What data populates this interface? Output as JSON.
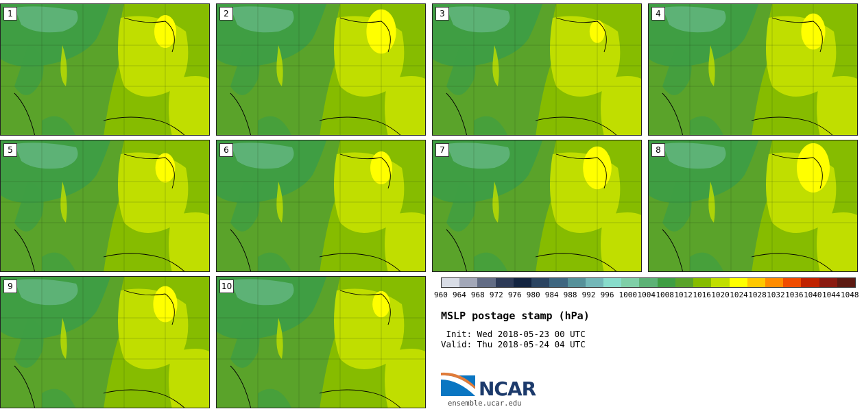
{
  "panels": [
    "1",
    "2",
    "3",
    "4",
    "5",
    "6",
    "7",
    "8",
    "9",
    "10"
  ],
  "colorbar": {
    "ticks": [
      "960",
      "964",
      "968",
      "972",
      "976",
      "980",
      "984",
      "988",
      "992",
      "996",
      "1000",
      "1004",
      "1008",
      "1012",
      "1016",
      "1020",
      "1024",
      "1028",
      "1032",
      "1036",
      "1040",
      "1044",
      "1048"
    ],
    "colors": [
      "#d9dde6",
      "#a2a7b8",
      "#626c85",
      "#2d3a57",
      "#132441",
      "#2b4461",
      "#3e6680",
      "#56919a",
      "#73b7b8",
      "#88dccb",
      "#7fcfa7",
      "#5db276",
      "#3f9e43",
      "#5aa32a",
      "#86bc00",
      "#c0de00",
      "#ffff00",
      "#ffc800",
      "#ff8c00",
      "#f04c00",
      "#c02200",
      "#8b1a10",
      "#5c1a12"
    ]
  },
  "title": "MSLP postage stamp (hPa)",
  "init_line": " Init: Wed 2018-05-23 00 UTC",
  "valid_line": "Valid: Thu 2018-05-24 04 UTC",
  "logo_text": "NCAR",
  "url": "ensemble.ucar.edu"
}
